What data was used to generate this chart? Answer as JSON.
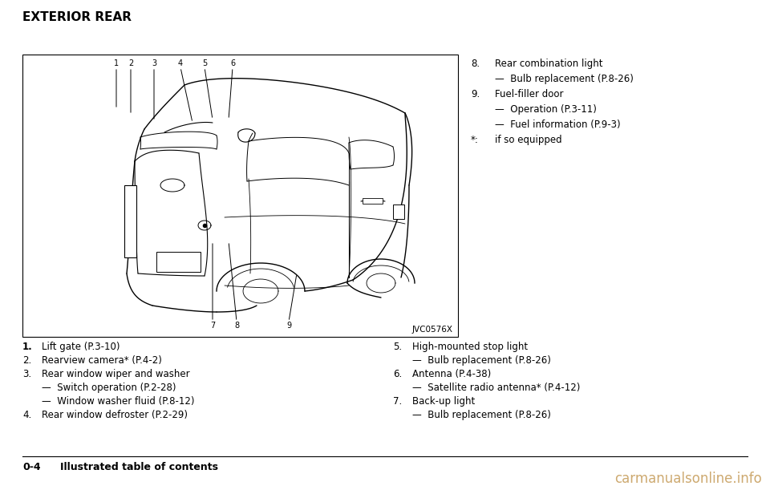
{
  "title": "EXTERIOR REAR",
  "image_label": "JVC0576X",
  "watermark": "carmanualsonline.info",
  "right_column": [
    {
      "num": "8.",
      "text": "Rear combination light",
      "indent": false
    },
    {
      "num": "",
      "text": "—  Bulb replacement (P.8-26)",
      "indent": true
    },
    {
      "num": "9.",
      "text": "Fuel-filler door",
      "indent": false
    },
    {
      "num": "",
      "text": "—  Operation (P.3-11)",
      "indent": true
    },
    {
      "num": "",
      "text": "—  Fuel information (P.9-3)",
      "indent": true
    },
    {
      "num": "*:",
      "text": "if so equipped",
      "indent": false
    }
  ],
  "bottom_left": [
    {
      "num": "1.",
      "text": "Lift gate (P.3-10)",
      "sub": false
    },
    {
      "num": "2.",
      "text": "Rearview camera* (P.4-2)",
      "sub": false
    },
    {
      "num": "3.",
      "text": "Rear window wiper and washer",
      "sub": false
    },
    {
      "num": "",
      "text": "—  Switch operation (P.2-28)",
      "sub": true
    },
    {
      "num": "",
      "text": "—  Window washer fluid (P.8-12)",
      "sub": true
    },
    {
      "num": "4.",
      "text": "Rear window defroster (P.2-29)",
      "sub": false
    }
  ],
  "bottom_right": [
    {
      "num": "5.",
      "text": "High-mounted stop light",
      "sub": false
    },
    {
      "num": "",
      "text": "—  Bulb replacement (P.8-26)",
      "sub": true
    },
    {
      "num": "6.",
      "text": "Antenna (P.4-38)",
      "sub": false
    },
    {
      "num": "",
      "text": "—  Satellite radio antenna* (P.4-12)",
      "sub": true
    },
    {
      "num": "7.",
      "text": "Back-up light",
      "sub": false
    },
    {
      "num": "",
      "text": "—  Bulb replacement (P.8-26)",
      "sub": true
    }
  ],
  "bg_color": "#ffffff",
  "box_color": "#000000",
  "text_color": "#000000"
}
